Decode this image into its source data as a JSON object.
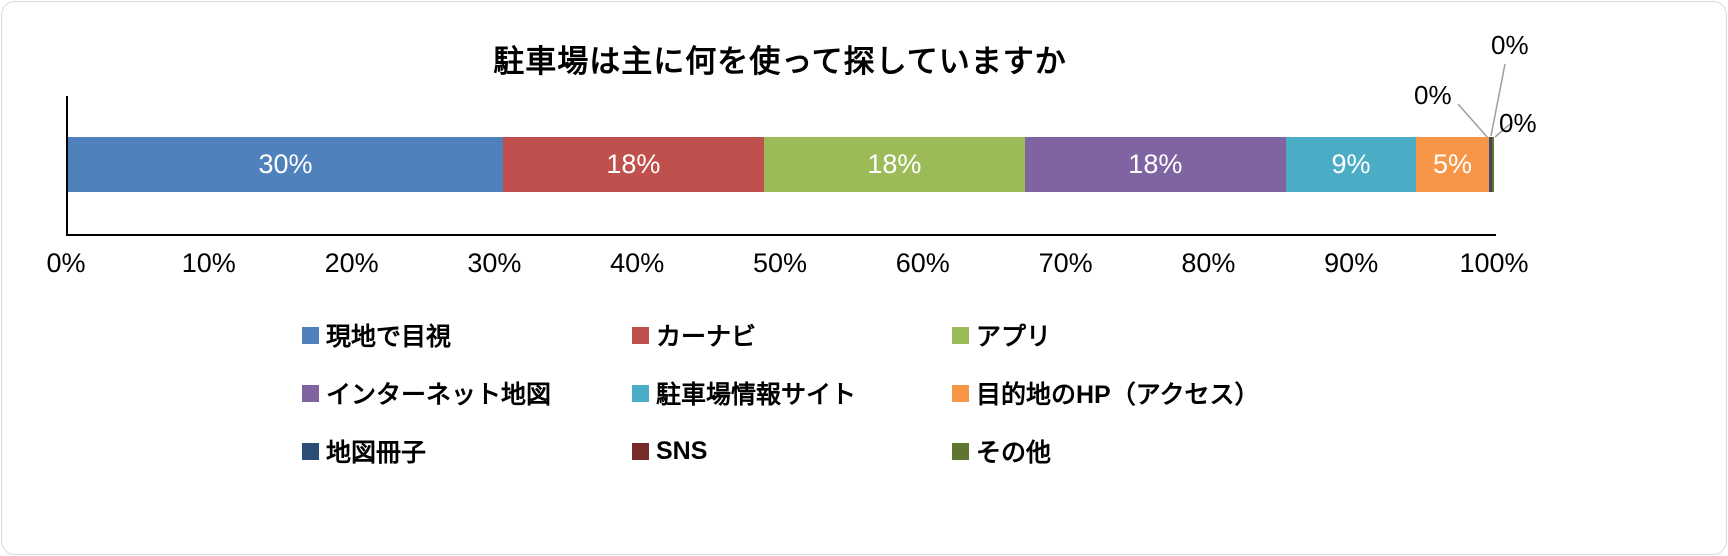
{
  "chart_data": {
    "type": "bar",
    "stacked": true,
    "orientation": "horizontal",
    "title": "駐車場は主に何を使って探していますか",
    "xlabel": "",
    "ylabel": "",
    "xlim": [
      0,
      100
    ],
    "grid": false,
    "legend_position": "bottom",
    "x_axis_ticks": [
      "0%",
      "10%",
      "20%",
      "30%",
      "40%",
      "50%",
      "60%",
      "70%",
      "80%",
      "90%",
      "100%"
    ],
    "series": [
      {
        "name": "現地で目視",
        "value": 30,
        "label": "30%",
        "color": "#4F81BD"
      },
      {
        "name": "カーナビ",
        "value": 18,
        "label": "18%",
        "color": "#C0504D"
      },
      {
        "name": "アプリ",
        "value": 18,
        "label": "18%",
        "color": "#9BBB59"
      },
      {
        "name": "インターネット地図",
        "value": 18,
        "label": "18%",
        "color": "#8064A2"
      },
      {
        "name": "駐車場情報サイト",
        "value": 9,
        "label": "9%",
        "color": "#4BACC6"
      },
      {
        "name": "目的地のHP（アクセス）",
        "value": 5,
        "label": "5%",
        "color": "#F79646"
      },
      {
        "name": "地図冊子",
        "value": 0,
        "label": "0%",
        "color": "#2C4D75"
      },
      {
        "name": "SNS",
        "value": 0,
        "label": "0%",
        "color": "#772C2A"
      },
      {
        "name": "その他",
        "value": 0,
        "label": "0%",
        "color": "#5F7530"
      }
    ]
  }
}
